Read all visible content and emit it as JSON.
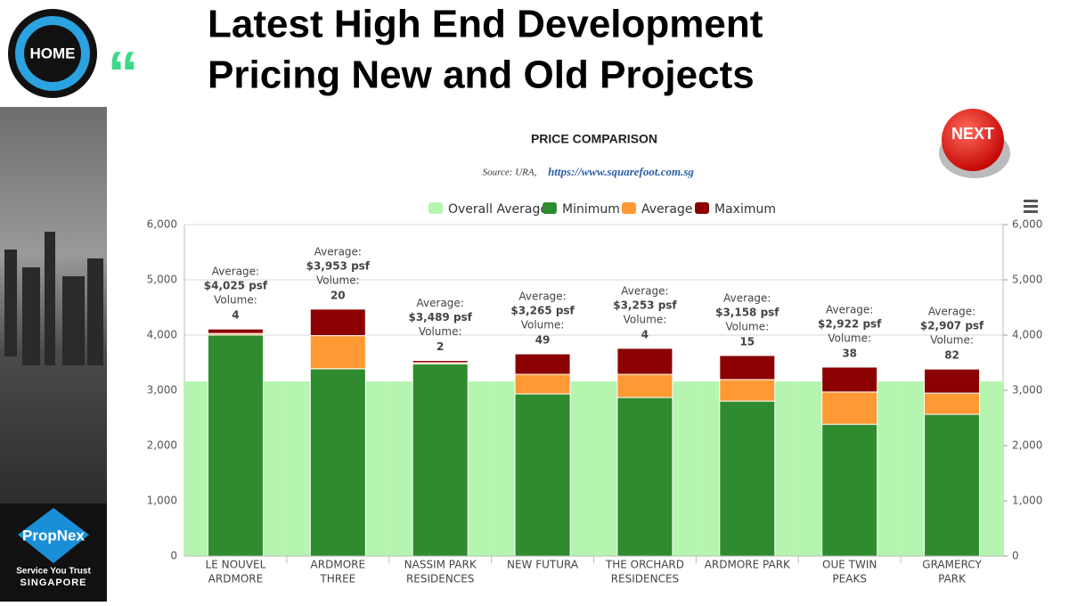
{
  "slide": {
    "title_lines": [
      "Latest High End Development",
      "Pricing New and Old Projects"
    ],
    "home_button": "HOME",
    "next_button": "NEXT",
    "logo": {
      "brand": "PropNex",
      "tagline": "Service You Trust",
      "country": "SINGAPORE"
    }
  },
  "chart_data": {
    "type": "bar",
    "stacked": true,
    "title": "PRICE COMPARISON",
    "subtitle_source": "Source: URA,",
    "subtitle_link": "https://www.squarefoot.com.sg",
    "categories": [
      [
        "LE NOUVEL",
        "ARDMORE"
      ],
      [
        "ARDMORE",
        "THREE"
      ],
      [
        "NASSIM PARK",
        "RESIDENCES"
      ],
      [
        "NEW FUTURA"
      ],
      [
        "THE ORCHARD",
        "RESIDENCES"
      ],
      [
        "ARDMORE PARK"
      ],
      [
        "OUE TWIN",
        "PEAKS"
      ],
      [
        "GRAMERCY",
        "PARK"
      ]
    ],
    "series": [
      {
        "name": "Overall Average",
        "color": "#b5f5b0",
        "kind": "area",
        "values": [
          3160,
          3160,
          3160,
          3160,
          3160,
          3160,
          3160,
          3160
        ]
      },
      {
        "name": "Minimum",
        "color": "#2e8b2e",
        "values": [
          4000,
          3390,
          3480,
          2935,
          2870,
          2805,
          2385,
          2565
        ]
      },
      {
        "name": "Average",
        "color": "#ff9933",
        "values": [
          30,
          600,
          20,
          355,
          420,
          390,
          585,
          385
        ]
      },
      {
        "name": "Maximum",
        "color": "#8b0000",
        "values": [
          80,
          480,
          40,
          370,
          470,
          435,
          450,
          435
        ]
      }
    ],
    "average_caption": "Average:",
    "volume_caption": "Volume:",
    "data_labels": [
      {
        "average": "$4,025 psf",
        "volume": "4"
      },
      {
        "average": "$3,953 psf",
        "volume": "20"
      },
      {
        "average": "$3,489 psf",
        "volume": "2"
      },
      {
        "average": "$3,265 psf",
        "volume": "49"
      },
      {
        "average": "$3,253 psf",
        "volume": "4"
      },
      {
        "average": "$3,158 psf",
        "volume": "15"
      },
      {
        "average": "$2,922 psf",
        "volume": "38"
      },
      {
        "average": "$2,907 psf",
        "volume": "82"
      }
    ],
    "ylim": [
      0,
      6000
    ],
    "yticks": [
      0,
      {
        "value": 1000,
        "label": "1,000"
      },
      {
        "value": 2000,
        "label": "2,000"
      },
      {
        "value": 3000,
        "label": "3,000"
      },
      {
        "value": 4000,
        "label": "4,000"
      },
      {
        "value": 5000,
        "label": "5,000"
      },
      {
        "value": 6000,
        "label": "6,000"
      }
    ],
    "y2lim": [
      0,
      6000
    ],
    "y2ticks": [
      0,
      {
        "value": 1000,
        "label": "1,000"
      },
      {
        "value": 2000,
        "label": "2,000"
      },
      {
        "value": 3000,
        "label": "3,000"
      },
      {
        "value": 4000,
        "label": "4,000"
      },
      {
        "value": 5000,
        "label": "5,000"
      },
      {
        "value": 6000,
        "label": "6,000"
      }
    ],
    "grid": true,
    "legend": "top"
  }
}
